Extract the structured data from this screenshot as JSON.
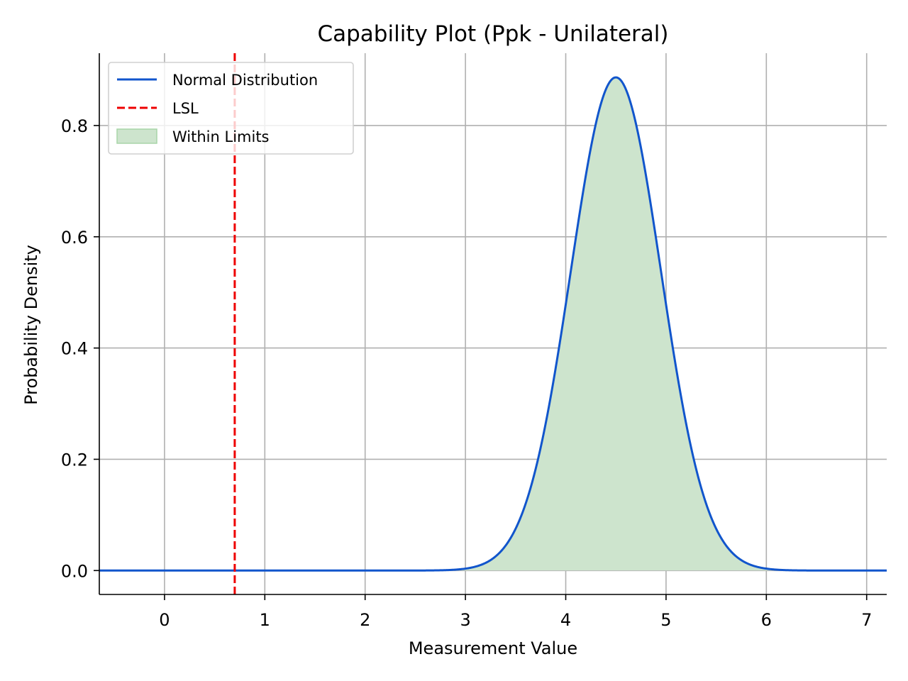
{
  "chart_data": {
    "type": "area",
    "title": "Capability Plot (Ppk - Unilateral)",
    "xlabel": "Measurement Value",
    "ylabel": "Probability Density",
    "xlim": [
      -0.65,
      7.2
    ],
    "ylim": [
      -0.043,
      0.93
    ],
    "x_ticks": [
      0,
      1,
      2,
      3,
      4,
      5,
      6,
      7
    ],
    "y_ticks": [
      0.0,
      0.2,
      0.4,
      0.6,
      0.8
    ],
    "x_tick_labels": [
      "0",
      "1",
      "2",
      "3",
      "4",
      "5",
      "6",
      "7"
    ],
    "y_tick_labels": [
      "0.0",
      "0.2",
      "0.4",
      "0.6",
      "0.8"
    ],
    "grid": true,
    "legend_position": "top-left",
    "series": [
      {
        "name": "Normal Distribution",
        "kind": "normal-pdf-line",
        "mean": 4.5,
        "std": 0.45,
        "x_range": [
          -0.65,
          7.2
        ],
        "color": "#1155cc"
      },
      {
        "name": "LSL",
        "kind": "vertical-dashed-line",
        "x": 0.7,
        "color": "#ee0000"
      },
      {
        "name": "Within Limits",
        "kind": "filled-area-under-curve",
        "x_from": 0.7,
        "x_to": 7.2,
        "color": "#cde4cd",
        "edge_color": "#a8d5a8"
      }
    ]
  }
}
